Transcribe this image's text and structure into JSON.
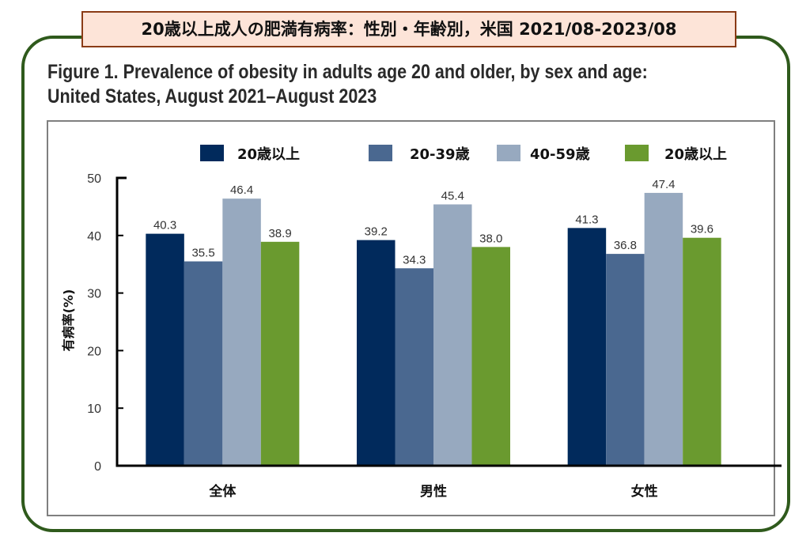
{
  "banner_title": "20歳以上成人の肥満有病率：性別・年齢別，米国 2021/08-2023/08",
  "figure_title_line1": "Figure 1. Prevalence of obesity in adults age 20 and older, by sex and age:",
  "figure_title_line2": "United States, August 2021–August 2023",
  "chart_data": {
    "type": "bar",
    "title": "Figure 1. Prevalence of obesity in adults age 20 and older, by sex and age: United States, August 2021–August 2023",
    "xlabel": "",
    "ylabel": "有病率(%)",
    "ylim": [
      0,
      50
    ],
    "yticks": [
      0,
      10,
      20,
      30,
      40,
      50
    ],
    "grid": false,
    "legend_position": "top",
    "categories": [
      "全体",
      "男性",
      "女性"
    ],
    "series": [
      {
        "name": "20歳以上",
        "color": "#012a5c",
        "values": [
          40.3,
          39.2,
          41.3
        ],
        "labels": [
          "40.3",
          "39.2",
          "41.3"
        ]
      },
      {
        "name": "20-39歳",
        "color": "#4a6890",
        "values": [
          35.5,
          34.3,
          36.8
        ],
        "labels": [
          "35.5",
          "34.3",
          "36.8"
        ]
      },
      {
        "name": "40-59歳",
        "color": "#97a9bf",
        "values": [
          46.4,
          45.4,
          47.4
        ],
        "labels": [
          "46.4",
          "45.4",
          "47.4"
        ]
      },
      {
        "name": "20歳以上",
        "color": "#6a9a2f",
        "values": [
          38.9,
          38.0,
          39.6
        ],
        "labels": [
          "38.9",
          "38.0",
          "39.6"
        ]
      }
    ]
  }
}
